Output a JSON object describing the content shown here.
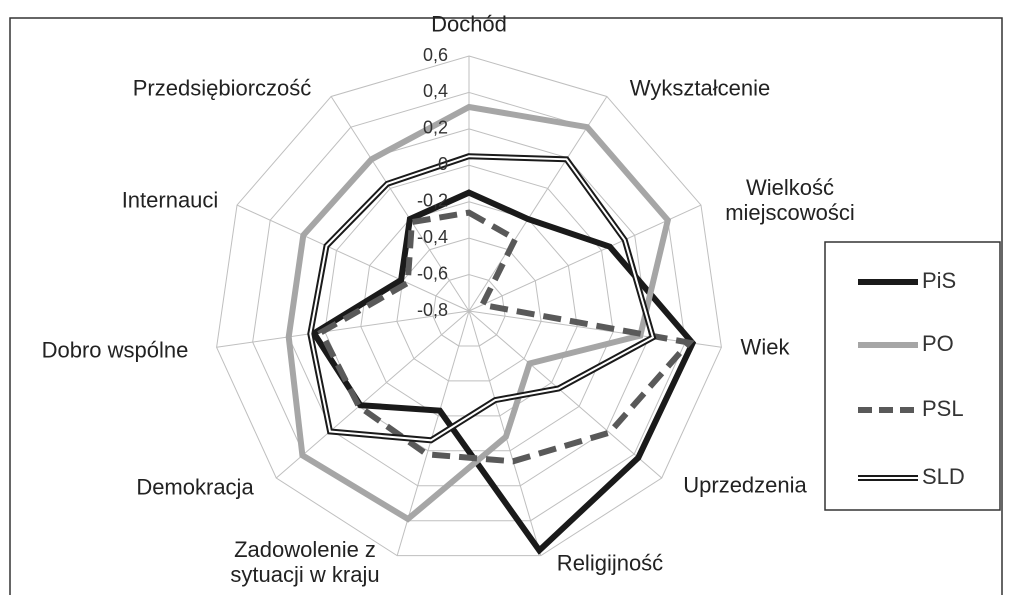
{
  "chart_data": {
    "type": "radar",
    "categories": [
      "Dochód",
      "Wykształcenie",
      "Wielkość miejscowości",
      "Wiek",
      "Uprzedzenia",
      "Religijność",
      "Zadowolenie z sytuacji w kraju",
      "Demokracja",
      "Dobro wspólne",
      "Internauci",
      "Przedsiębiorczość"
    ],
    "ylim": [
      -0.8,
      0.6
    ],
    "yticks": [
      {
        "value": -0.8,
        "label": "-0,8"
      },
      {
        "value": -0.6,
        "label": "-0,6"
      },
      {
        "value": -0.4,
        "label": "-0,4"
      },
      {
        "value": -0.2,
        "label": "-0,2"
      },
      0,
      {
        "value": 0.2,
        "label": "0,2"
      },
      {
        "value": 0.4,
        "label": "0,4"
      },
      {
        "value": 0.6,
        "label": "0,6"
      }
    ],
    "grid": true,
    "legend": "right",
    "series": [
      {
        "name": "PiS",
        "color": "#1a1a1a",
        "style": "solid",
        "values": [
          -0.15,
          -0.2,
          0.05,
          0.44,
          0.43,
          0.57,
          -0.23,
          -0.01,
          0.06,
          -0.39,
          -0.2
        ]
      },
      {
        "name": "PO",
        "color": "#a6a6a6",
        "style": "solid",
        "values": [
          0.32,
          0.4,
          0.4,
          0.15,
          -0.36,
          -0.08,
          0.39,
          0.41,
          0.2,
          0.2,
          0.19
        ]
      },
      {
        "name": "PSL",
        "color": "#595959",
        "style": "dashed",
        "values": [
          -0.26,
          -0.33,
          -0.72,
          0.42,
          0.22,
          0.06,
          0.02,
          0.0,
          0.02,
          -0.43,
          -0.22
        ]
      },
      {
        "name": "SLD",
        "color": "#1a1a1a",
        "style": "double",
        "values": [
          0.05,
          0.19,
          0.14,
          0.22,
          -0.15,
          -0.29,
          -0.06,
          0.21,
          0.08,
          0.06,
          0.03
        ]
      }
    ]
  }
}
